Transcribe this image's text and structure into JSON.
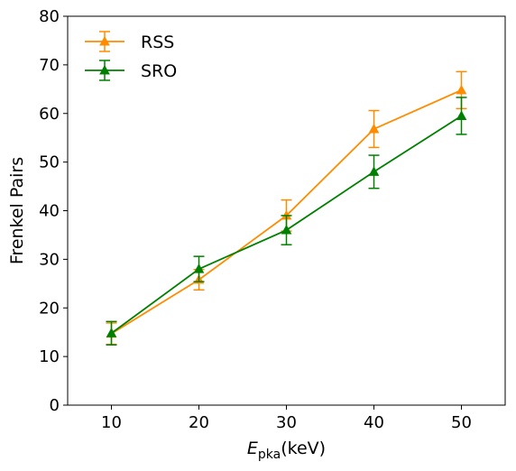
{
  "chart_data": {
    "type": "line",
    "x": [
      10,
      20,
      30,
      40,
      50
    ],
    "series": [
      {
        "name": "RSS",
        "color": "#ff8c00",
        "marker": "triangle-up",
        "values": [
          14.7,
          25.8,
          39.0,
          56.8,
          64.8
        ],
        "errors": [
          2.2,
          2.1,
          3.2,
          3.8,
          3.8
        ]
      },
      {
        "name": "SRO",
        "color": "#008000",
        "marker": "triangle-up",
        "values": [
          14.8,
          28.0,
          36.0,
          48.0,
          59.5
        ],
        "errors": [
          2.4,
          2.6,
          3.0,
          3.4,
          3.8
        ]
      }
    ],
    "xlim": [
      5,
      55
    ],
    "ylim": [
      0,
      80
    ],
    "xticks": [
      "10",
      "20",
      "30",
      "40",
      "50"
    ],
    "yticks": [
      "0",
      "10",
      "20",
      "30",
      "40",
      "50",
      "60",
      "70",
      "80"
    ],
    "xlabel_main": "E",
    "xlabel_sub": "pka",
    "xlabel_unit": "(keV)",
    "ylabel": "Frenkel Pairs",
    "legend_position": "top-left",
    "grid": false
  }
}
